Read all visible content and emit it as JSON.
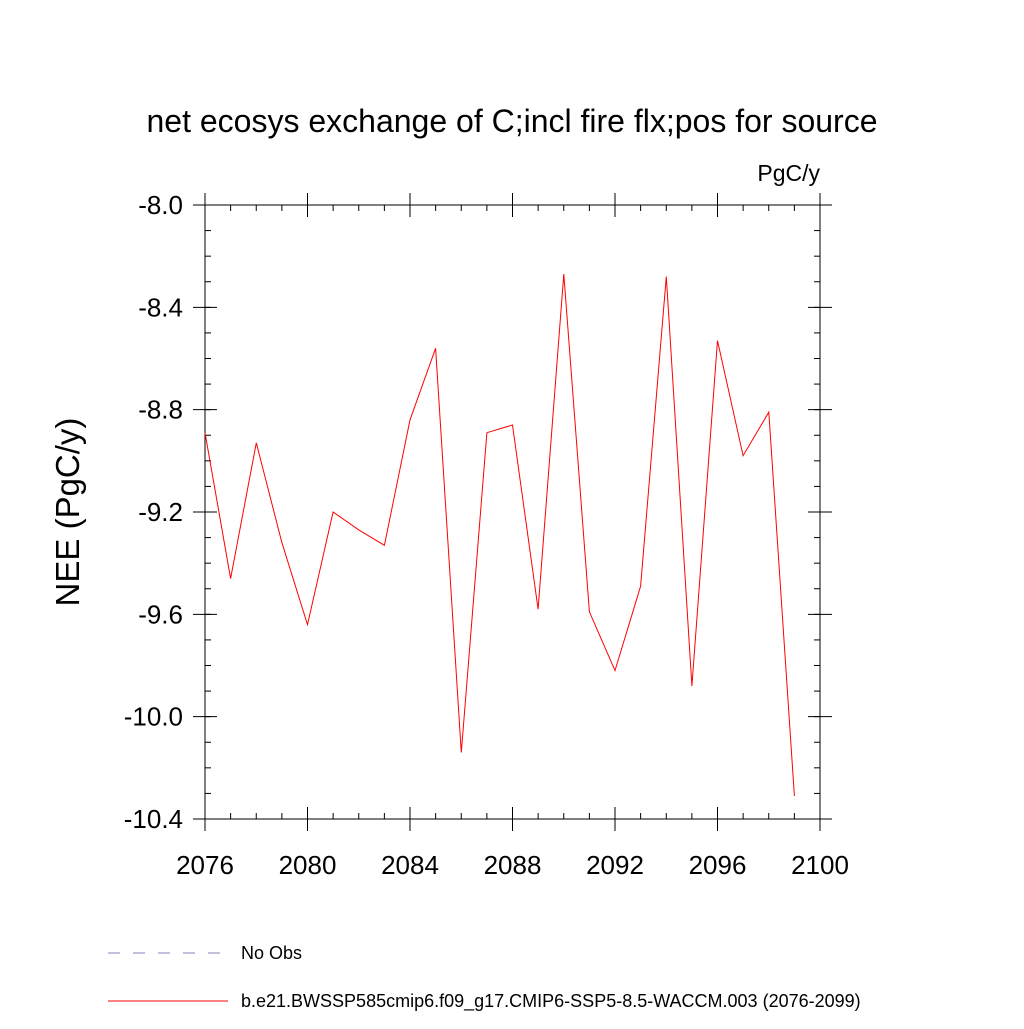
{
  "chart_data": {
    "type": "line",
    "title": "net ecosys exchange of C;incl fire flx;pos for source",
    "units_label": "PgC/y",
    "ylabel": "NEE  (PgC/y)",
    "xlabel": "",
    "xlim": [
      2076,
      2100
    ],
    "ylim": [
      -10.4,
      -8.0
    ],
    "x_ticks": [
      2076,
      2080,
      2084,
      2088,
      2092,
      2096,
      2100
    ],
    "x_tick_labels": [
      "2076",
      "2080",
      "2084",
      "2088",
      "2092",
      "2096",
      "2100"
    ],
    "y_ticks": [
      -8.0,
      -8.4,
      -8.8,
      -9.2,
      -9.6,
      -10.0,
      -10.4
    ],
    "y_tick_labels": [
      "-8.0",
      "-8.4",
      "-8.8",
      "-9.2",
      "-9.6",
      "-10.0",
      "-10.4"
    ],
    "series": [
      {
        "name": "b.e21.BWSSP585cmip6.f09_g17.CMIP6-SSP5-8.5-WACCM.003 (2076-2099)",
        "color": "#ff0000",
        "x": [
          2076,
          2077,
          2078,
          2079,
          2080,
          2081,
          2082,
          2083,
          2084,
          2085,
          2086,
          2087,
          2088,
          2089,
          2090,
          2091,
          2092,
          2093,
          2094,
          2095,
          2096,
          2097,
          2098,
          2099
        ],
        "values": [
          -8.89,
          -9.46,
          -8.93,
          -9.32,
          -9.64,
          -9.2,
          -9.27,
          -9.33,
          -8.84,
          -8.56,
          -10.14,
          -8.89,
          -8.86,
          -9.58,
          -8.27,
          -9.59,
          -9.82,
          -9.49,
          -8.28,
          -9.88,
          -8.53,
          -8.98,
          -8.81,
          -10.31
        ]
      }
    ],
    "legend": [
      {
        "label": "No Obs",
        "style": "dashed",
        "color": "#8a7fb8"
      },
      {
        "label": "b.e21.BWSSP585cmip6.f09_g17.CMIP6-SSP5-8.5-WACCM.003 (2076-2099)",
        "style": "solid",
        "color": "#ff0000"
      }
    ]
  }
}
